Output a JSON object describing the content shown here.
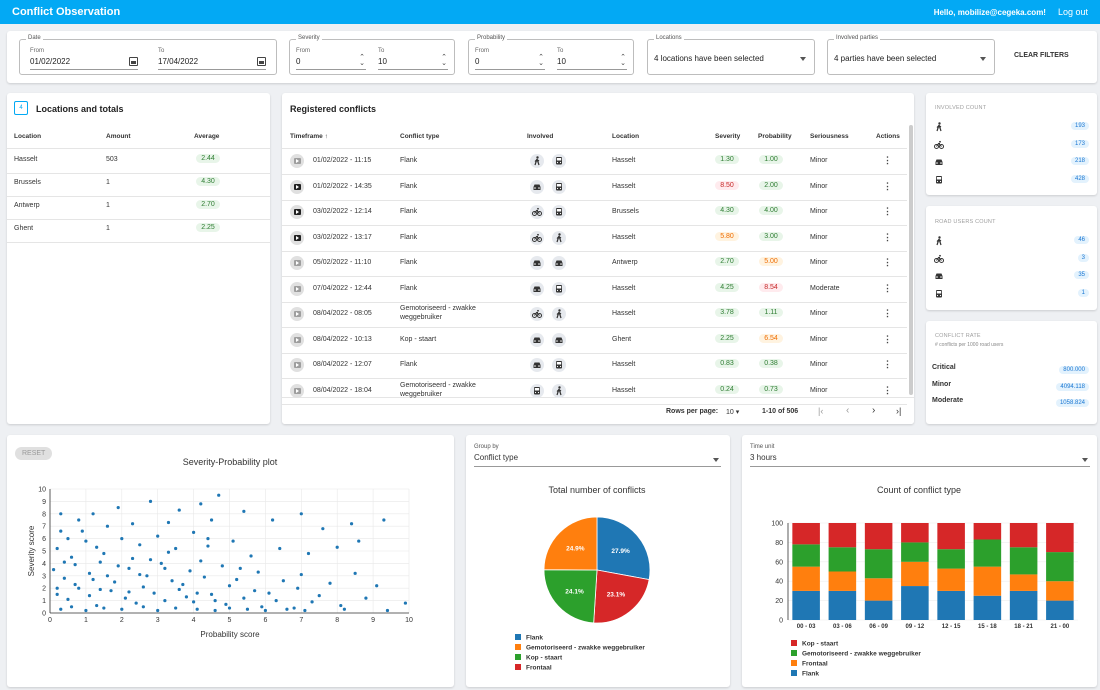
{
  "topbar": {
    "title": "Conflict Observation",
    "greeting": "Hello, mobilize@cegeka.com!",
    "logout": "Log out"
  },
  "filters": {
    "date": {
      "legend": "Date",
      "from_label": "From",
      "to_label": "To",
      "from": "01/02/2022",
      "to": "17/04/2022"
    },
    "severity": {
      "legend": "Severity",
      "from_label": "From",
      "to_label": "To",
      "from": "0",
      "to": "10"
    },
    "probability": {
      "legend": "Probability",
      "from_label": "From",
      "to_label": "To",
      "from": "0",
      "to": "10"
    },
    "locations": {
      "legend": "Locations",
      "value": "4 locations have been selected"
    },
    "parties": {
      "legend": "Involved parties",
      "value": "4 parties have been selected"
    },
    "clear": "CLEAR FILTERS"
  },
  "locations_card": {
    "badge": "4",
    "title": "Locations and totals",
    "headers": [
      "Location",
      "Amount",
      "Average"
    ],
    "rows": [
      {
        "location": "Hasselt",
        "amount": "503",
        "average": "2.44"
      },
      {
        "location": "Brussels",
        "amount": "1",
        "average": "4.30"
      },
      {
        "location": "Antwerp",
        "amount": "1",
        "average": "2.70"
      },
      {
        "location": "Ghent",
        "amount": "1",
        "average": "2.25"
      }
    ]
  },
  "conflicts": {
    "title": "Registered conflicts",
    "headers": {
      "timeframe": "Timeframe",
      "type": "Conflict type",
      "involved": "Involved",
      "location": "Location",
      "severity": "Severity",
      "probability": "Probability",
      "seriousness": "Seriousness",
      "actions": "Actions"
    },
    "rows": [
      {
        "video": "grey",
        "time": "01/02/2022 - 11:15",
        "type": [
          "Flank"
        ],
        "inv": [
          "pedestrian",
          "bus"
        ],
        "location": "Hasselt",
        "sev": "1.30",
        "sevc": "g",
        "prob": "1.00",
        "probc": "g",
        "seriousness": "Minor"
      },
      {
        "video": "dark",
        "time": "01/02/2022 - 14:35",
        "type": [
          "Flank"
        ],
        "inv": [
          "car",
          "bus"
        ],
        "location": "Hasselt",
        "sev": "8.50",
        "sevc": "r",
        "prob": "2.00",
        "probc": "g",
        "seriousness": "Minor"
      },
      {
        "video": "dark",
        "time": "03/02/2022 - 12:14",
        "type": [
          "Flank"
        ],
        "inv": [
          "bike",
          "bus"
        ],
        "location": "Brussels",
        "sev": "4.30",
        "sevc": "g",
        "prob": "4.00",
        "probc": "g",
        "seriousness": "Minor"
      },
      {
        "video": "dark",
        "time": "03/02/2022 - 13:17",
        "type": [
          "Flank"
        ],
        "inv": [
          "bike",
          "pedestrian"
        ],
        "location": "Hasselt",
        "sev": "5.80",
        "sevc": "o",
        "prob": "3.00",
        "probc": "g",
        "seriousness": "Minor"
      },
      {
        "video": "grey",
        "time": "05/02/2022 - 11:10",
        "type": [
          "Flank"
        ],
        "inv": [
          "car",
          "car"
        ],
        "location": "Antwerp",
        "sev": "2.70",
        "sevc": "g",
        "prob": "5.00",
        "probc": "o",
        "seriousness": "Minor"
      },
      {
        "video": "grey",
        "time": "07/04/2022 - 12:44",
        "type": [
          "Flank"
        ],
        "inv": [
          "car",
          "bus"
        ],
        "location": "Hasselt",
        "sev": "4.25",
        "sevc": "g",
        "prob": "8.54",
        "probc": "r",
        "seriousness": "Moderate"
      },
      {
        "video": "grey",
        "time": "08/04/2022 - 08:05",
        "type": [
          "Gemotoriseerd - zwakke",
          "weggebruiker"
        ],
        "inv": [
          "bike",
          "pedestrian"
        ],
        "location": "Hasselt",
        "sev": "3.78",
        "sevc": "g",
        "prob": "1.11",
        "probc": "g",
        "seriousness": "Minor"
      },
      {
        "video": "grey",
        "time": "08/04/2022 - 10:13",
        "type": [
          "Kop - staart"
        ],
        "inv": [
          "car",
          "car"
        ],
        "location": "Ghent",
        "sev": "2.25",
        "sevc": "g",
        "prob": "6.54",
        "probc": "o",
        "seriousness": "Minor"
      },
      {
        "video": "grey",
        "time": "08/04/2022 - 12:07",
        "type": [
          "Flank"
        ],
        "inv": [
          "car",
          "bus"
        ],
        "location": "Hasselt",
        "sev": "0.83",
        "sevc": "g",
        "prob": "0.38",
        "probc": "g",
        "seriousness": "Minor"
      },
      {
        "video": "grey",
        "time": "08/04/2022 - 18:04",
        "type": [
          "Gemotoriseerd - zwakke",
          "weggebruiker"
        ],
        "inv": [
          "bus",
          "pedestrian"
        ],
        "location": "Hasselt",
        "sev": "0.24",
        "sevc": "g",
        "prob": "0.73",
        "probc": "g",
        "seriousness": "Minor"
      }
    ],
    "footer": {
      "rows_per_page_label": "Rows per page:",
      "rows_per_page": "10",
      "range": "1-10 of 506"
    }
  },
  "involved_count": {
    "title": "INVOLVED COUNT",
    "items": [
      {
        "icon": "pedestrian",
        "value": "193"
      },
      {
        "icon": "bike",
        "value": "173"
      },
      {
        "icon": "car",
        "value": "218"
      },
      {
        "icon": "bus",
        "value": "428"
      }
    ]
  },
  "road_users_count": {
    "title": "ROAD USERS COUNT",
    "items": [
      {
        "icon": "pedestrian",
        "value": "46"
      },
      {
        "icon": "bike",
        "value": "3"
      },
      {
        "icon": "car",
        "value": "35"
      },
      {
        "icon": "bus",
        "value": "1"
      }
    ]
  },
  "conflict_rate": {
    "title": "CONFLICT RATE",
    "subtitle": "# conflicts per 1000 road users",
    "items": [
      {
        "label": "Critical",
        "value": "800.000"
      },
      {
        "label": "Minor",
        "value": "4094.118"
      },
      {
        "label": "Moderate",
        "value": "1058.824"
      }
    ]
  },
  "scatter": {
    "reset": "RESET"
  },
  "pie_controls": {
    "group_by_label": "Group by",
    "group_by": "Conflict type"
  },
  "bar_controls": {
    "time_unit_label": "Time unit",
    "time_unit": "3 hours"
  },
  "colors": {
    "blue": "#1f77b4",
    "orange": "#ff7f0e",
    "green": "#2ca02c",
    "red": "#d62728",
    "accent": "#03a9f4"
  },
  "chart_data": [
    {
      "type": "scatter",
      "title": "Severity-Probability plot",
      "xlabel": "Probability score",
      "ylabel": "Severity score",
      "xlim": [
        0,
        10
      ],
      "ylim": [
        0,
        10
      ],
      "grid": true,
      "points": [
        [
          0.3,
          8
        ],
        [
          0.5,
          6
        ],
        [
          0.8,
          7.5
        ],
        [
          1.2,
          8
        ],
        [
          1.6,
          7
        ],
        [
          1.9,
          8.5
        ],
        [
          2.3,
          7.2
        ],
        [
          2.8,
          9
        ],
        [
          3.3,
          7.3
        ],
        [
          3.6,
          8.3
        ],
        [
          4.2,
          8.8
        ],
        [
          4.5,
          7.5
        ],
        [
          4.7,
          9.5
        ],
        [
          5.4,
          8.2
        ],
        [
          6.2,
          7.5
        ],
        [
          7.0,
          8
        ],
        [
          7.6,
          6.8
        ],
        [
          8.4,
          7.2
        ],
        [
          9.3,
          7.5
        ],
        [
          0.2,
          5.2
        ],
        [
          0.6,
          4.5
        ],
        [
          1.0,
          5.8
        ],
        [
          1.5,
          4.8
        ],
        [
          2.0,
          6
        ],
        [
          2.5,
          5.5
        ],
        [
          3.0,
          6.2
        ],
        [
          3.5,
          5.2
        ],
        [
          4.0,
          6.5
        ],
        [
          4.4,
          5.4
        ],
        [
          5.1,
          5.8
        ],
        [
          5.6,
          4.6
        ],
        [
          6.4,
          5.2
        ],
        [
          7.2,
          4.8
        ],
        [
          8.0,
          5.3
        ],
        [
          8.6,
          5.8
        ],
        [
          0.1,
          3.5
        ],
        [
          0.4,
          2.8
        ],
        [
          0.7,
          3.9
        ],
        [
          1.1,
          3.2
        ],
        [
          1.4,
          4.1
        ],
        [
          1.8,
          2.5
        ],
        [
          2.2,
          3.6
        ],
        [
          2.7,
          3.0
        ],
        [
          3.1,
          4.0
        ],
        [
          3.4,
          2.6
        ],
        [
          3.9,
          3.4
        ],
        [
          4.3,
          2.9
        ],
        [
          4.8,
          3.8
        ],
        [
          5.2,
          2.7
        ],
        [
          5.8,
          3.3
        ],
        [
          6.5,
          2.6
        ],
        [
          7.0,
          3.1
        ],
        [
          7.8,
          2.4
        ],
        [
          8.5,
          3.2
        ],
        [
          9.1,
          2.2
        ],
        [
          0.2,
          1.5
        ],
        [
          0.5,
          1.1
        ],
        [
          0.8,
          2.0
        ],
        [
          1.1,
          1.4
        ],
        [
          1.3,
          0.6
        ],
        [
          1.7,
          1.8
        ],
        [
          2.1,
          1.2
        ],
        [
          2.4,
          0.8
        ],
        [
          2.9,
          1.6
        ],
        [
          3.2,
          1.0
        ],
        [
          3.6,
          1.9
        ],
        [
          4.0,
          0.9
        ],
        [
          4.5,
          1.5
        ],
        [
          4.9,
          0.7
        ],
        [
          5.4,
          1.2
        ],
        [
          5.9,
          0.5
        ],
        [
          6.3,
          1.0
        ],
        [
          6.8,
          0.4
        ],
        [
          7.3,
          0.9
        ],
        [
          8.1,
          0.6
        ],
        [
          8.8,
          1.2
        ],
        [
          9.9,
          0.8
        ],
        [
          0.3,
          0.3
        ],
        [
          0.6,
          0.5
        ],
        [
          1.0,
          0.2
        ],
        [
          1.5,
          0.4
        ],
        [
          2.0,
          0.3
        ],
        [
          2.6,
          0.5
        ],
        [
          3.0,
          0.2
        ],
        [
          3.5,
          0.4
        ],
        [
          4.1,
          0.3
        ],
        [
          4.6,
          0.2
        ],
        [
          5.0,
          0.4
        ],
        [
          5.5,
          0.3
        ],
        [
          6.0,
          0.2
        ],
        [
          6.6,
          0.3
        ],
        [
          7.1,
          0.2
        ],
        [
          8.2,
          0.3
        ],
        [
          9.4,
          0.2
        ],
        [
          0.9,
          6.6
        ],
        [
          1.3,
          5.3
        ],
        [
          1.6,
          3.0
        ],
        [
          2.3,
          4.4
        ],
        [
          2.6,
          2.1
        ],
        [
          3.3,
          4.9
        ],
        [
          3.8,
          1.3
        ],
        [
          4.2,
          4.2
        ],
        [
          5.0,
          2.2
        ],
        [
          0.4,
          4.1
        ],
        [
          0.7,
          2.3
        ],
        [
          1.2,
          2.7
        ],
        [
          1.9,
          3.8
        ],
        [
          2.2,
          1.7
        ],
        [
          2.8,
          4.3
        ],
        [
          3.7,
          2.3
        ],
        [
          4.6,
          1.0
        ],
        [
          5.3,
          3.6
        ],
        [
          6.1,
          1.6
        ],
        [
          0.2,
          2.0
        ],
        [
          0.3,
          6.6
        ],
        [
          1.4,
          1.9
        ],
        [
          2.5,
          3.1
        ],
        [
          3.2,
          3.6
        ],
        [
          4.1,
          1.6
        ],
        [
          4.4,
          6.0
        ],
        [
          5.7,
          1.8
        ],
        [
          6.9,
          2.0
        ],
        [
          7.5,
          1.4
        ]
      ]
    },
    {
      "type": "pie",
      "title": "Total number of conflicts",
      "slices": [
        {
          "label": "Flank",
          "value": 27.9,
          "color": "#1f77b4"
        },
        {
          "label": "Frontaal",
          "value": 23.1,
          "color": "#d62728"
        },
        {
          "label": "Kop - staart",
          "value": 24.1,
          "color": "#2ca02c"
        },
        {
          "label": "Gemotoriseerd - zwakke weggebruiker",
          "value": 24.9,
          "color": "#ff7f0e"
        }
      ],
      "legend": [
        {
          "label": "Flank",
          "color": "#1f77b4"
        },
        {
          "label": "Gemotoriseerd - zwakke weggebruiker",
          "color": "#ff7f0e"
        },
        {
          "label": "Kop - staart",
          "color": "#2ca02c"
        },
        {
          "label": "Frontaal",
          "color": "#d62728"
        }
      ]
    },
    {
      "type": "bar",
      "title": "Count of conflict type",
      "stacked": true,
      "ylim": [
        0,
        100
      ],
      "yticks": [
        0,
        20,
        40,
        60,
        80,
        100
      ],
      "categories": [
        "00 - 03",
        "03 - 06",
        "06 - 09",
        "09 - 12",
        "12 - 15",
        "15 - 18",
        "18 - 21",
        "21 - 00"
      ],
      "series": [
        {
          "name": "Flank",
          "color": "#1f77b4",
          "values": [
            30,
            30,
            20,
            35,
            30,
            25,
            30,
            20
          ]
        },
        {
          "name": "Frontaal",
          "color": "#ff7f0e",
          "values": [
            25,
            20,
            23,
            25,
            23,
            30,
            17,
            20
          ]
        },
        {
          "name": "Gemotoriseerd - zwakke weggebruiker",
          "color": "#2ca02c",
          "values": [
            23,
            25,
            30,
            20,
            20,
            28,
            28,
            30
          ]
        },
        {
          "name": "Kop - staart",
          "color": "#d62728",
          "values": [
            22,
            25,
            27,
            20,
            27,
            17,
            25,
            30
          ]
        }
      ],
      "legend": [
        {
          "label": "Kop - staart",
          "color": "#d62728"
        },
        {
          "label": "Gemotoriseerd - zwakke weggebruiker",
          "color": "#2ca02c"
        },
        {
          "label": "Frontaal",
          "color": "#ff7f0e"
        },
        {
          "label": "Flank",
          "color": "#1f77b4"
        }
      ]
    }
  ]
}
